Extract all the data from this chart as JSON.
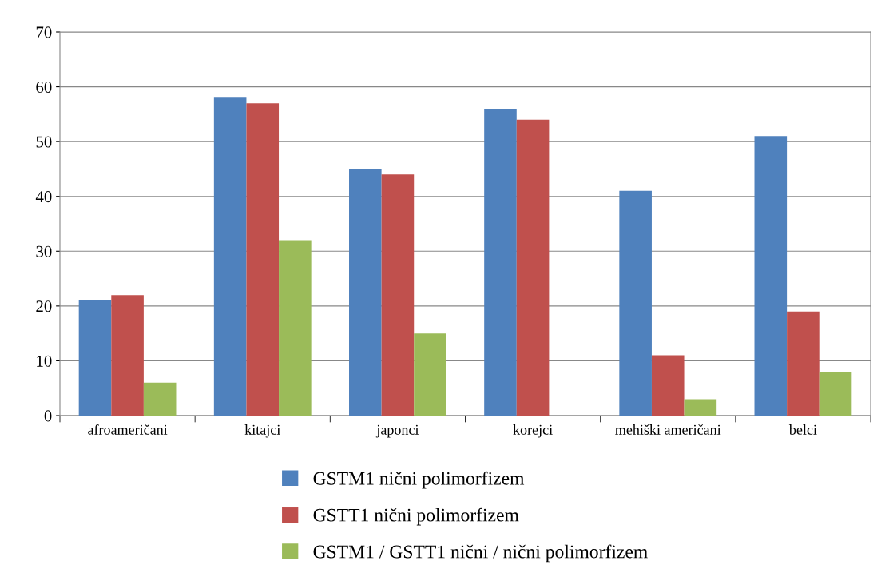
{
  "chart_data": {
    "type": "bar",
    "categories": [
      "afroameričani",
      "kitajci",
      "japonci",
      "korejci",
      "mehiški američani",
      "belci"
    ],
    "series": [
      {
        "name": "GSTM1 nični polimorfizem",
        "color": "#4f81bd",
        "values": [
          21,
          58,
          45,
          56,
          41,
          51
        ]
      },
      {
        "name": "GSTT1 nični polimorfizem",
        "color": "#c0504d",
        "values": [
          22,
          57,
          44,
          54,
          11,
          19
        ]
      },
      {
        "name": "GSTM1 / GSTT1 nični / nični polimorfizem",
        "color": "#9bbb59",
        "values": [
          6,
          32,
          15,
          null,
          3,
          8
        ]
      }
    ],
    "ylim": [
      0,
      70
    ],
    "yticks": [
      0,
      10,
      20,
      30,
      40,
      50,
      60,
      70
    ],
    "grid": "y",
    "legend": "bottom"
  }
}
